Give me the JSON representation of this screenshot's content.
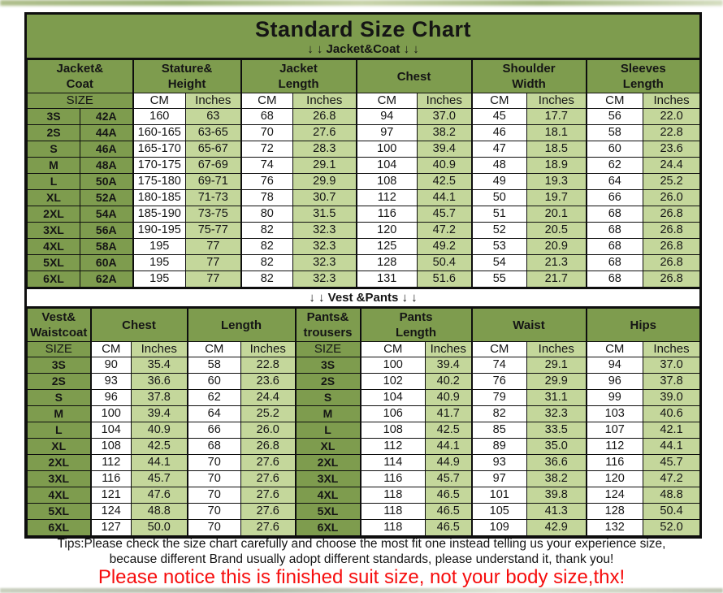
{
  "page": {
    "title": "Standard Size Chart",
    "jacket_section_label": "↓ ↓  Jacket&Coat ↓ ↓",
    "vest_section_label": "↓ ↓  Vest &Pants ↓ ↓",
    "tips_line1": "Tips:Please check the size chart carefully and choose the most fit one instead telling us your experience size,",
    "tips_line2": "because different Brand usually adopt different standards, please understand it, thank you!",
    "notice": "Please notice this is finished suit size, not your body size,thx!"
  },
  "units": {
    "size": "SIZE",
    "cm": "CM",
    "inches": "Inches"
  },
  "colors": {
    "dark_green": "#7e9c4e",
    "light_green": "#c4d79b",
    "white": "#ffffff",
    "border_black": "#0e0e0e",
    "notice_red": "#f60d0d"
  },
  "jacket_table": {
    "groups": [
      "Jacket&\nCoat",
      "Stature&\nHeight",
      "Jacket\nLength",
      "Chest",
      "Shoulder\nWidth",
      "Sleeves\nLength"
    ],
    "rows": [
      [
        "3S",
        "42A",
        "160",
        "63",
        "68",
        "26.8",
        "94",
        "37.0",
        "45",
        "17.7",
        "56",
        "22.0"
      ],
      [
        "2S",
        "44A",
        "160-165",
        "63-65",
        "70",
        "27.6",
        "97",
        "38.2",
        "46",
        "18.1",
        "58",
        "22.8"
      ],
      [
        "S",
        "46A",
        "165-170",
        "65-67",
        "72",
        "28.3",
        "100",
        "39.4",
        "47",
        "18.5",
        "60",
        "23.6"
      ],
      [
        "M",
        "48A",
        "170-175",
        "67-69",
        "74",
        "29.1",
        "104",
        "40.9",
        "48",
        "18.9",
        "62",
        "24.4"
      ],
      [
        "L",
        "50A",
        "175-180",
        "69-71",
        "76",
        "29.9",
        "108",
        "42.5",
        "49",
        "19.3",
        "64",
        "25.2"
      ],
      [
        "XL",
        "52A",
        "180-185",
        "71-73",
        "78",
        "30.7",
        "112",
        "44.1",
        "50",
        "19.7",
        "66",
        "26.0"
      ],
      [
        "2XL",
        "54A",
        "185-190",
        "73-75",
        "80",
        "31.5",
        "116",
        "45.7",
        "51",
        "20.1",
        "68",
        "26.8"
      ],
      [
        "3XL",
        "56A",
        "190-195",
        "75-77",
        "82",
        "32.3",
        "120",
        "47.2",
        "52",
        "20.5",
        "68",
        "26.8"
      ],
      [
        "4XL",
        "58A",
        "195",
        "77",
        "82",
        "32.3",
        "125",
        "49.2",
        "53",
        "20.9",
        "68",
        "26.8"
      ],
      [
        "5XL",
        "60A",
        "195",
        "77",
        "82",
        "32.3",
        "128",
        "50.4",
        "54",
        "21.3",
        "68",
        "26.8"
      ],
      [
        "6XL",
        "62A",
        "195",
        "77",
        "82",
        "32.3",
        "131",
        "51.6",
        "55",
        "21.7",
        "68",
        "26.8"
      ]
    ]
  },
  "vest_pants_table": {
    "groups": [
      "Vest&\nWaistcoat",
      "Chest",
      "Length",
      "Pants&\ntrousers",
      "Pants\nLength",
      "Waist",
      "Hips"
    ],
    "rows": [
      [
        "3S",
        "90",
        "35.4",
        "58",
        "22.8",
        "3S",
        "100",
        "39.4",
        "74",
        "29.1",
        "94",
        "37.0"
      ],
      [
        "2S",
        "93",
        "36.6",
        "60",
        "23.6",
        "2S",
        "102",
        "40.2",
        "76",
        "29.9",
        "96",
        "37.8"
      ],
      [
        "S",
        "96",
        "37.8",
        "62",
        "24.4",
        "S",
        "104",
        "40.9",
        "79",
        "31.1",
        "99",
        "39.0"
      ],
      [
        "M",
        "100",
        "39.4",
        "64",
        "25.2",
        "M",
        "106",
        "41.7",
        "82",
        "32.3",
        "103",
        "40.6"
      ],
      [
        "L",
        "104",
        "40.9",
        "66",
        "26.0",
        "L",
        "108",
        "42.5",
        "85",
        "33.5",
        "107",
        "42.1"
      ],
      [
        "XL",
        "108",
        "42.5",
        "68",
        "26.8",
        "XL",
        "112",
        "44.1",
        "89",
        "35.0",
        "112",
        "44.1"
      ],
      [
        "2XL",
        "112",
        "44.1",
        "70",
        "27.6",
        "2XL",
        "114",
        "44.9",
        "93",
        "36.6",
        "116",
        "45.7"
      ],
      [
        "3XL",
        "116",
        "45.7",
        "70",
        "27.6",
        "3XL",
        "116",
        "45.7",
        "97",
        "38.2",
        "120",
        "47.2"
      ],
      [
        "4XL",
        "121",
        "47.6",
        "70",
        "27.6",
        "4XL",
        "118",
        "46.5",
        "101",
        "39.8",
        "124",
        "48.8"
      ],
      [
        "5XL",
        "124",
        "48.8",
        "70",
        "27.6",
        "5XL",
        "118",
        "46.5",
        "105",
        "41.3",
        "128",
        "50.4"
      ],
      [
        "6XL",
        "127",
        "50.0",
        "70",
        "27.6",
        "6XL",
        "118",
        "46.5",
        "109",
        "42.9",
        "132",
        "52.0"
      ]
    ]
  }
}
